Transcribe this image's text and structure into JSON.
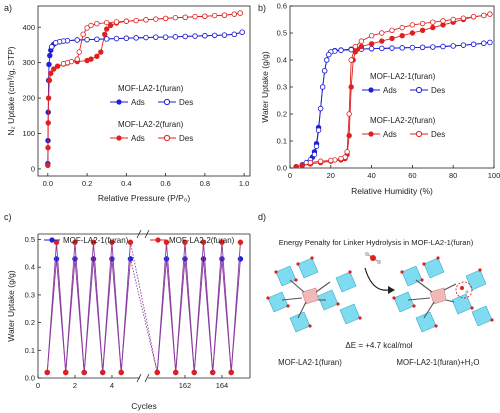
{
  "panels": {
    "a": {
      "letter": "a)",
      "ylabel": "N₂ Uptake (cm³/g, STP)",
      "xlabel": "Relative Pressure (P/P₀)",
      "xticks": [
        "0.0",
        "0.2",
        "0.4",
        "0.6",
        "0.8",
        "1.0"
      ],
      "yticks": [
        "0",
        "100",
        "200",
        "300",
        "400"
      ],
      "legend1_title": "MOF-LA2-1(furan)",
      "legend2_title": "MOF-LA2-2(furan)",
      "ads_label": "Ads",
      "des_label": "Des"
    },
    "b": {
      "letter": "b)",
      "ylabel": "Water Uptake (g/g)",
      "xlabel": "Relative Humidity (%)",
      "xticks": [
        "0",
        "20",
        "40",
        "60",
        "80",
        "100"
      ],
      "yticks": [
        "0.0",
        "0.1",
        "0.2",
        "0.3",
        "0.4",
        "0.5",
        "0.6"
      ],
      "legend1_title": "MOF-LA2-1(furan)",
      "legend2_title": "MOF-LA2-2(furan)",
      "ads_label": "Ads",
      "des_label": "Des"
    },
    "c": {
      "letter": "c)",
      "ylabel": "Water Uptake (g/g)",
      "xlabel": "Cycles",
      "xticks": [
        "0",
        "2",
        "4",
        "162",
        "164"
      ],
      "yticks": [
        "0.0",
        "0.1",
        "0.2",
        "0.3",
        "0.4",
        "0.5"
      ],
      "legend1": "MOF-LA2-1(furan)",
      "legend2": "MOF-LA2-2(furan)"
    },
    "d": {
      "letter": "d)",
      "title": "Energy Penalty for Linker Hydrolysis in MOF-LA2-1(furan)",
      "energy": "ΔE = +4.7 kcal/mol",
      "left_label": "MOF-LA2-1(furan)",
      "right_label": "MOF-LA2-1(furan)+H₂O"
    }
  },
  "colors": {
    "blue": "#1f1fd6",
    "red": "#e02020",
    "purple_line": "#8a3aa0"
  },
  "chart_data": [
    {
      "panel": "a",
      "type": "scatter",
      "xlabel": "Relative Pressure (P/P0)",
      "ylabel": "N2 Uptake (cm3/g, STP)",
      "xlim": [
        -0.05,
        1.03
      ],
      "ylim": [
        -20,
        460
      ],
      "series": [
        {
          "name": "MOF-LA2-1(furan) Ads",
          "marker": "filled",
          "color": "#1f1fd6",
          "x": [
            0.0,
            0.001,
            0.002,
            0.004,
            0.006,
            0.01,
            0.015,
            0.02,
            0.03,
            0.04,
            0.06,
            0.08,
            0.1,
            0.15,
            0.2,
            0.25,
            0.3,
            0.35,
            0.4,
            0.45,
            0.5,
            0.55,
            0.6,
            0.65,
            0.7,
            0.75,
            0.8,
            0.85,
            0.9,
            0.95,
            0.99
          ],
          "y": [
            15,
            80,
            160,
            250,
            295,
            320,
            335,
            345,
            352,
            356,
            359,
            361,
            362,
            364,
            365,
            366,
            367,
            368,
            369,
            370,
            371,
            372,
            372,
            373,
            374,
            375,
            376,
            377,
            378,
            380,
            386
          ]
        },
        {
          "name": "MOF-LA2-1(furan) Des",
          "marker": "open",
          "color": "#1f1fd6",
          "x": [
            0.99,
            0.95,
            0.9,
            0.85,
            0.8,
            0.75,
            0.7,
            0.65,
            0.6,
            0.55,
            0.5,
            0.45,
            0.4,
            0.35,
            0.3,
            0.25,
            0.2,
            0.15,
            0.1,
            0.08,
            0.06,
            0.04,
            0.02
          ],
          "y": [
            386,
            380,
            378,
            377,
            376,
            375,
            374,
            373,
            372,
            372,
            371,
            370,
            369,
            368,
            367,
            366,
            365,
            364,
            362,
            361,
            359,
            356,
            345
          ]
        },
        {
          "name": "MOF-LA2-2(furan) Ads",
          "marker": "filled",
          "color": "#e02020",
          "x": [
            0.0,
            0.001,
            0.002,
            0.004,
            0.008,
            0.015,
            0.03,
            0.05,
            0.08,
            0.1,
            0.15,
            0.2,
            0.22,
            0.25,
            0.27,
            0.29,
            0.3,
            0.32,
            0.35,
            0.4,
            0.5,
            0.6,
            0.7,
            0.8,
            0.9,
            0.95,
            0.98
          ],
          "y": [
            10,
            60,
            130,
            200,
            250,
            270,
            282,
            290,
            296,
            299,
            303,
            306,
            310,
            318,
            330,
            380,
            395,
            405,
            412,
            417,
            421,
            425,
            428,
            431,
            434,
            437,
            440
          ]
        },
        {
          "name": "MOF-LA2-2(furan) Des",
          "marker": "open",
          "color": "#e02020",
          "x": [
            0.98,
            0.95,
            0.9,
            0.85,
            0.8,
            0.75,
            0.7,
            0.65,
            0.6,
            0.55,
            0.5,
            0.45,
            0.4,
            0.35,
            0.3,
            0.25,
            0.22,
            0.2,
            0.18,
            0.16,
            0.15,
            0.12,
            0.1,
            0.08
          ],
          "y": [
            440,
            437,
            434,
            433,
            431,
            430,
            428,
            427,
            425,
            423,
            421,
            419,
            417,
            415,
            413,
            410,
            405,
            398,
            380,
            330,
            310,
            303,
            300,
            297
          ]
        }
      ]
    },
    {
      "panel": "b",
      "type": "scatter",
      "xlabel": "Relative Humidity (%)",
      "ylabel": "Water Uptake (g/g)",
      "xlim": [
        0,
        100
      ],
      "ylim": [
        0,
        0.6
      ],
      "series": [
        {
          "name": "MOF-LA2-1(furan) Ads",
          "marker": "filled",
          "color": "#1f1fd6",
          "x": [
            3,
            6,
            9,
            11,
            12,
            13,
            14,
            15,
            16,
            17,
            18,
            19,
            20,
            22,
            25,
            30,
            35,
            40,
            45,
            50,
            55,
            60,
            65,
            70,
            75,
            80,
            85,
            90,
            95,
            98
          ],
          "y": [
            0.005,
            0.01,
            0.02,
            0.04,
            0.06,
            0.09,
            0.15,
            0.22,
            0.3,
            0.36,
            0.4,
            0.42,
            0.43,
            0.435,
            0.437,
            0.44,
            0.441,
            0.442,
            0.443,
            0.444,
            0.445,
            0.446,
            0.447,
            0.448,
            0.45,
            0.452,
            0.455,
            0.458,
            0.462,
            0.465
          ]
        },
        {
          "name": "MOF-LA2-1(furan) Des",
          "marker": "open",
          "color": "#1f1fd6",
          "x": [
            98,
            95,
            90,
            85,
            80,
            75,
            70,
            65,
            60,
            55,
            50,
            45,
            40,
            35,
            30,
            25,
            22,
            20,
            19,
            18,
            17,
            16,
            15,
            14,
            13,
            12,
            10,
            8,
            6
          ],
          "y": [
            0.465,
            0.462,
            0.458,
            0.455,
            0.452,
            0.45,
            0.448,
            0.447,
            0.446,
            0.445,
            0.444,
            0.443,
            0.442,
            0.44,
            0.438,
            0.436,
            0.433,
            0.43,
            0.42,
            0.4,
            0.36,
            0.3,
            0.22,
            0.14,
            0.08,
            0.05,
            0.03,
            0.02,
            0.012
          ]
        },
        {
          "name": "MOF-LA2-2(furan) Ads",
          "marker": "filled",
          "color": "#e02020",
          "x": [
            3,
            6,
            10,
            15,
            20,
            25,
            27,
            28,
            29,
            30,
            31,
            32,
            33,
            35,
            40,
            45,
            50,
            55,
            60,
            65,
            70,
            75,
            80,
            85,
            90,
            95,
            98
          ],
          "y": [
            0.005,
            0.01,
            0.015,
            0.02,
            0.025,
            0.03,
            0.035,
            0.05,
            0.12,
            0.3,
            0.4,
            0.43,
            0.44,
            0.45,
            0.46,
            0.47,
            0.48,
            0.49,
            0.5,
            0.51,
            0.52,
            0.53,
            0.54,
            0.55,
            0.56,
            0.565,
            0.57
          ]
        },
        {
          "name": "MOF-LA2-2(furan) Des",
          "marker": "open",
          "color": "#e02020",
          "x": [
            98,
            95,
            90,
            85,
            80,
            75,
            70,
            65,
            60,
            55,
            50,
            45,
            40,
            35,
            32,
            30,
            29,
            28,
            27,
            25,
            22,
            20,
            15,
            10
          ],
          "y": [
            0.57,
            0.565,
            0.56,
            0.555,
            0.55,
            0.545,
            0.54,
            0.535,
            0.53,
            0.52,
            0.51,
            0.5,
            0.49,
            0.47,
            0.45,
            0.4,
            0.2,
            0.06,
            0.04,
            0.035,
            0.03,
            0.028,
            0.025,
            0.02
          ]
        }
      ]
    },
    {
      "panel": "c",
      "type": "line",
      "xlabel": "Cycles",
      "ylabel": "Water Uptake (g/g)",
      "ylim": [
        0,
        0.52
      ],
      "note_axis_break": true,
      "series": [
        {
          "name": "MOF-LA2-1(furan)",
          "color": "#1f1fd6",
          "x": [
            0.5,
            1,
            1.5,
            2,
            2.5,
            3,
            3.5,
            4,
            4.5,
            5,
            160.5,
            161,
            161.5,
            162,
            162.5,
            163,
            163.5,
            164,
            164.5,
            165
          ],
          "y": [
            0.02,
            0.43,
            0.02,
            0.43,
            0.02,
            0.43,
            0.02,
            0.43,
            0.02,
            0.43,
            0.02,
            0.43,
            0.02,
            0.43,
            0.02,
            0.43,
            0.02,
            0.43,
            0.02,
            0.43
          ]
        },
        {
          "name": "MOF-LA2-2(furan)",
          "color": "#e02020",
          "x": [
            0.5,
            1,
            1.5,
            2,
            2.5,
            3,
            3.5,
            4,
            4.5,
            5,
            160.5,
            161,
            161.5,
            162,
            162.5,
            163,
            163.5,
            164,
            164.5,
            165
          ],
          "y": [
            0.02,
            0.49,
            0.02,
            0.49,
            0.02,
            0.49,
            0.02,
            0.49,
            0.02,
            0.49,
            0.02,
            0.49,
            0.02,
            0.49,
            0.02,
            0.49,
            0.02,
            0.49,
            0.02,
            0.49
          ]
        }
      ]
    }
  ]
}
